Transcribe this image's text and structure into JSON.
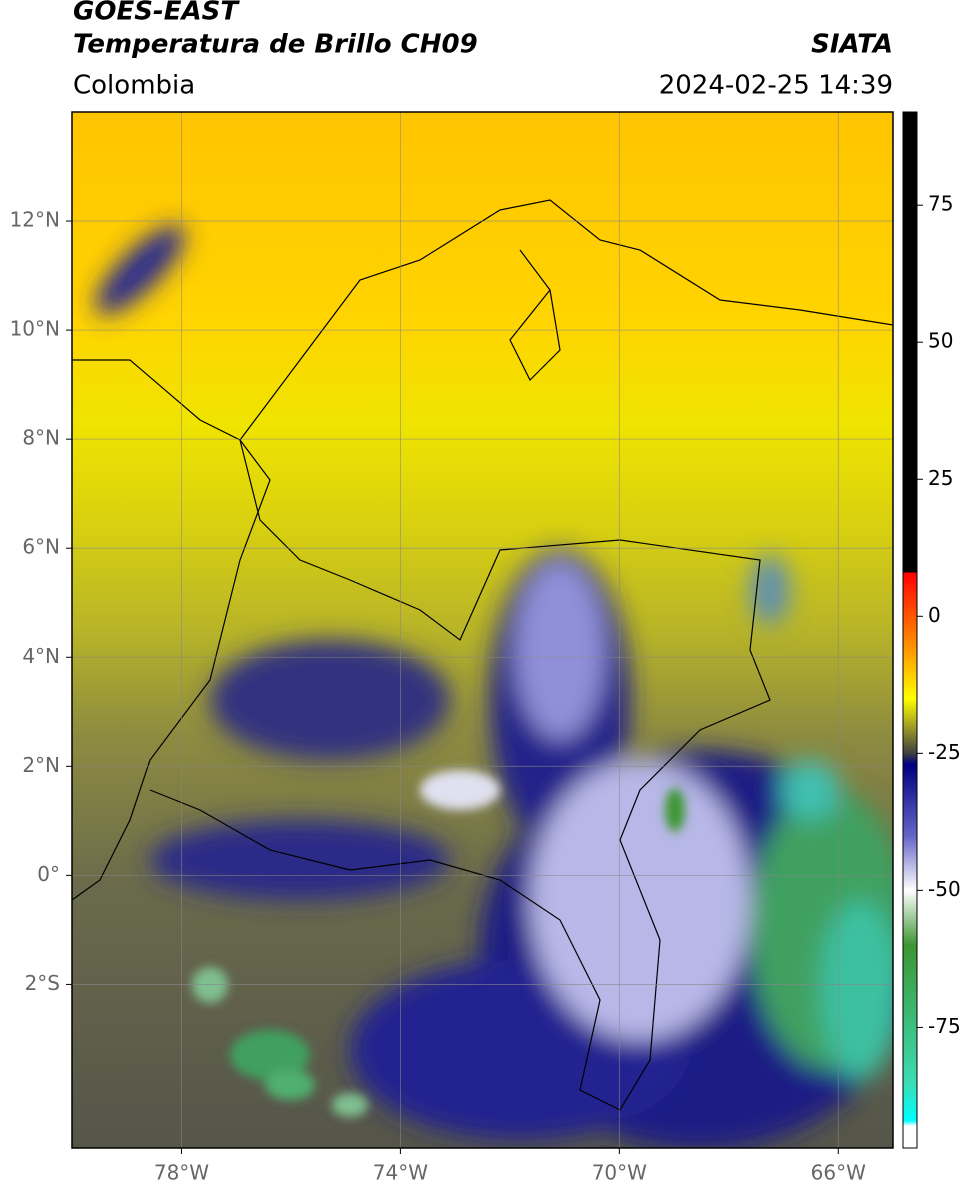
{
  "header": {
    "title": "GOES-EAST",
    "subtitle": "Temperatura de Brillo CH09",
    "source": "SIATA",
    "region": "Colombia",
    "datetime": "2024-02-25 14:39"
  },
  "map": {
    "xlim": [
      -80,
      -65
    ],
    "ylim": [
      -5,
      14
    ],
    "xticks": [
      {
        "value": -78,
        "label": "78°W"
      },
      {
        "value": -74,
        "label": "74°W"
      },
      {
        "value": -70,
        "label": "70°W"
      },
      {
        "value": -66,
        "label": "66°W"
      }
    ],
    "yticks": [
      {
        "value": 12,
        "label": "12°N"
      },
      {
        "value": 10,
        "label": "10°N"
      },
      {
        "value": 8,
        "label": "8°N"
      },
      {
        "value": 6,
        "label": "6°N"
      },
      {
        "value": 4,
        "label": "4°N"
      },
      {
        "value": 2,
        "label": "2°N"
      },
      {
        "value": 0,
        "label": "0°"
      },
      {
        "value": -2,
        "label": "2°S"
      }
    ],
    "grid": true
  },
  "colorbar": {
    "lim": [
      -97,
      92
    ],
    "ticks": [
      75,
      50,
      25,
      0,
      -25,
      -50,
      -75
    ],
    "stops": [
      {
        "value": 92,
        "color": "#000000"
      },
      {
        "value": 8,
        "color": "#000000"
      },
      {
        "value": 8,
        "color": "#ff0000"
      },
      {
        "value": -5,
        "color": "#ff8c00"
      },
      {
        "value": -15,
        "color": "#ffff00"
      },
      {
        "value": -19,
        "color": "#b4b41e"
      },
      {
        "value": -25,
        "color": "#404040"
      },
      {
        "value": -27,
        "color": "#000080"
      },
      {
        "value": -40,
        "color": "#6464c8"
      },
      {
        "value": -50,
        "color": "#ffffff"
      },
      {
        "value": -60,
        "color": "#3c9632"
      },
      {
        "value": -85,
        "color": "#3cdcb4"
      },
      {
        "value": -92,
        "color": "#00ffff"
      },
      {
        "value": -93,
        "color": "#ffffff"
      },
      {
        "value": -97,
        "color": "#ffffff"
      }
    ]
  }
}
